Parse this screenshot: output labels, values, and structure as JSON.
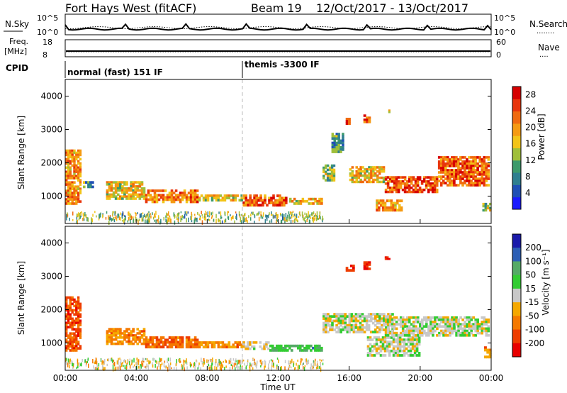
{
  "header": {
    "station": "Fort Hays West (fitACF)",
    "beam": "Beam 19",
    "dates": "12/Oct/2017 - 13/Oct/2017"
  },
  "colors": {
    "power_scale": [
      "#1a1aff",
      "#1f4fb5",
      "#2f7f8f",
      "#3d9a6b",
      "#9fbf3a",
      "#f2c418",
      "#f59a12",
      "#f06a0f",
      "#e8350c",
      "#d60000"
    ],
    "velocity_scale": [
      "#e80000",
      "#ee3d00",
      "#f57900",
      "#f5a800",
      "#c8c8c8",
      "#33cc33",
      "#55aa66",
      "#2d5fb5",
      "#1a1aaa"
    ],
    "ground_scatter": "#c8c8c8"
  },
  "chart_data": [
    {
      "type": "line",
      "name": "noise",
      "labels": {
        "left": "N.Sky",
        "right": "N.Search",
        "right_marker": "........"
      },
      "yticks_left": [
        "10^5",
        "10^0"
      ],
      "yticks_right": [
        "10^5",
        "10^0"
      ]
    },
    {
      "type": "line",
      "name": "frequency",
      "labels": {
        "left_top": "Freq.",
        "left_unit": "[MHz]",
        "right": "Nave",
        "right_marker": "...."
      },
      "yticks_left": [
        18,
        8
      ],
      "yticks_right": [
        60,
        0
      ]
    },
    {
      "type": "table",
      "name": "cpid",
      "label": "CPID",
      "segments": [
        {
          "start_hour": 0,
          "end_hour": 10,
          "text": "normal (fast) 151 IF"
        },
        {
          "start_hour": 10,
          "end_hour": 24,
          "text": "themis -3300 IF"
        }
      ]
    },
    {
      "type": "heatmap",
      "name": "power",
      "xlim": [
        0,
        24
      ],
      "ylim": [
        180,
        4500
      ],
      "ylabel": "Slant Range [km]",
      "yticks": [
        1000,
        2000,
        3000,
        4000
      ],
      "colorbar": {
        "label": "Power [dB]",
        "ticks": [
          4,
          8,
          12,
          16,
          20,
          24,
          28
        ],
        "range": [
          0,
          30
        ]
      },
      "patches": [
        {
          "t0": 0.0,
          "t1": 0.9,
          "r0": 750,
          "r1": 2400,
          "level": 0.7
        },
        {
          "t0": 1.0,
          "t1": 1.6,
          "r0": 1250,
          "r1": 1450,
          "level": 0.35
        },
        {
          "t0": 2.3,
          "t1": 4.5,
          "r0": 900,
          "r1": 1450,
          "level": 0.55
        },
        {
          "t0": 4.5,
          "t1": 7.5,
          "r0": 800,
          "r1": 1200,
          "level": 0.75
        },
        {
          "t0": 7.5,
          "t1": 10.0,
          "r0": 850,
          "r1": 1050,
          "level": 0.55
        },
        {
          "t0": 10.0,
          "t1": 12.5,
          "r0": 700,
          "r1": 1050,
          "level": 0.8
        },
        {
          "t0": 12.5,
          "t1": 14.5,
          "r0": 750,
          "r1": 950,
          "level": 0.6
        },
        {
          "t0": 14.5,
          "t1": 15.2,
          "r0": 1450,
          "r1": 1950,
          "level": 0.45
        },
        {
          "t0": 15.0,
          "t1": 15.7,
          "r0": 2300,
          "r1": 2900,
          "level": 0.3
        },
        {
          "t0": 15.8,
          "t1": 16.2,
          "r0": 3150,
          "r1": 3350,
          "level": 0.85
        },
        {
          "t0": 16.8,
          "t1": 17.2,
          "r0": 3200,
          "r1": 3450,
          "level": 0.8
        },
        {
          "t0": 18.0,
          "t1": 18.3,
          "r0": 3500,
          "r1": 3600,
          "level": 0.5
        },
        {
          "t0": 16.0,
          "t1": 18.0,
          "r0": 1400,
          "r1": 1900,
          "level": 0.6
        },
        {
          "t0": 17.5,
          "t1": 19.0,
          "r0": 550,
          "r1": 900,
          "level": 0.65
        },
        {
          "t0": 18.0,
          "t1": 21.0,
          "r0": 1100,
          "r1": 1600,
          "level": 0.85
        },
        {
          "t0": 21.0,
          "t1": 23.9,
          "r0": 1300,
          "r1": 2200,
          "level": 0.8
        },
        {
          "t0": 23.5,
          "t1": 24.0,
          "r0": 550,
          "r1": 800,
          "level": 0.45
        }
      ]
    },
    {
      "type": "heatmap",
      "name": "velocity",
      "xlim": [
        0,
        24
      ],
      "ylim": [
        180,
        4500
      ],
      "xlabel": "Time UT",
      "ylabel": "Slant Range [km]",
      "xticks": [
        "00:00",
        "04:00",
        "08:00",
        "12:00",
        "16:00",
        "20:00",
        "00:00"
      ],
      "yticks": [
        1000,
        2000,
        3000,
        4000
      ],
      "colorbar": {
        "label": "Velocity [m s⁻¹]",
        "ticks": [
          "200",
          "100",
          "50",
          "15",
          "-15",
          "-50",
          "-100",
          "-200"
        ]
      },
      "patches": [
        {
          "t0": 0.0,
          "t1": 0.9,
          "r0": 750,
          "r1": 2400,
          "level": 0.15
        },
        {
          "t0": 2.3,
          "t1": 4.5,
          "r0": 950,
          "r1": 1450,
          "level": 0.3
        },
        {
          "t0": 4.5,
          "t1": 7.5,
          "r0": 850,
          "r1": 1200,
          "level": 0.2
        },
        {
          "t0": 7.5,
          "t1": 10.0,
          "r0": 850,
          "r1": 1050,
          "level": 0.3
        },
        {
          "t0": 10.0,
          "t1": 11.5,
          "r0": 800,
          "r1": 1050,
          "level": 0.45
        },
        {
          "t0": 11.5,
          "t1": 14.5,
          "r0": 750,
          "r1": 950,
          "level": 0.7
        },
        {
          "t0": 15.8,
          "t1": 16.3,
          "r0": 3150,
          "r1": 3350,
          "level": 0.05
        },
        {
          "t0": 16.8,
          "t1": 17.2,
          "r0": 3200,
          "r1": 3450,
          "level": 0.05
        },
        {
          "t0": 18.0,
          "t1": 18.3,
          "r0": 3500,
          "r1": 3600,
          "level": 0.1
        },
        {
          "t0": 14.5,
          "t1": 18.5,
          "r0": 1300,
          "r1": 1900,
          "level": 0.5
        },
        {
          "t0": 17.0,
          "t1": 20.0,
          "r0": 600,
          "r1": 1200,
          "level": 0.5
        },
        {
          "t0": 18.0,
          "t1": 23.9,
          "r0": 1200,
          "r1": 1800,
          "level": 0.5
        },
        {
          "t0": 23.6,
          "t1": 24.0,
          "r0": 550,
          "r1": 900,
          "level": 0.3
        }
      ]
    }
  ]
}
